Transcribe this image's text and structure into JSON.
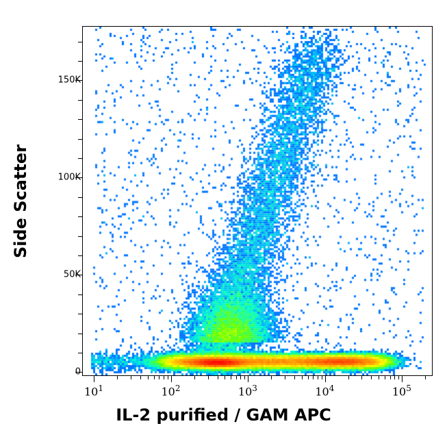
{
  "chart_data": {
    "type": "scatter",
    "subtype": "flow-cytometry density dot plot",
    "title": "",
    "xlabel": "IL-2 purified / GAM APC",
    "ylabel": "Side Scatter",
    "xscale": "log",
    "xlim": [
      7,
      250000
    ],
    "ylim": [
      -2000,
      178000
    ],
    "x_ticks": [
      {
        "value": 10,
        "label": "10^1"
      },
      {
        "value": 100,
        "label": "10^2"
      },
      {
        "value": 1000,
        "label": "10^3"
      },
      {
        "value": 10000,
        "label": "10^4"
      },
      {
        "value": 100000,
        "label": "10^5"
      }
    ],
    "y_ticks": [
      {
        "value": 0,
        "label": "0"
      },
      {
        "value": 50000,
        "label": "50K"
      },
      {
        "value": 100000,
        "label": "100K"
      },
      {
        "value": 150000,
        "label": "150K"
      }
    ],
    "colormap": [
      "#0000ff",
      "#00aaff",
      "#00ffcc",
      "#66ff00",
      "#ffff00",
      "#ff8800",
      "#ff0000"
    ],
    "populations": [
      {
        "name": "main low-SSC band",
        "x_range": [
          100,
          60000
        ],
        "y_center": 5000,
        "peak_x": [
          300,
          20000
        ],
        "density": "highest (red)"
      },
      {
        "name": "rising granular population",
        "x_range": [
          400,
          10000
        ],
        "y_range": [
          10000,
          178000
        ],
        "density": "low-medium (blue-green)"
      },
      {
        "name": "sparse scatter",
        "x_range": [
          10,
          200000
        ],
        "y_range": [
          0,
          178000
        ],
        "density": "low (blue)"
      }
    ]
  },
  "axes": {
    "x_title": "IL-2 purified / GAM APC",
    "y_title": "Side Scatter",
    "y_labels": [
      "0",
      "50K",
      "100K",
      "150K"
    ],
    "x_labels": [
      {
        "base": "10",
        "exp": "1"
      },
      {
        "base": "10",
        "exp": "2"
      },
      {
        "base": "10",
        "exp": "3"
      },
      {
        "base": "10",
        "exp": "4"
      },
      {
        "base": "10",
        "exp": "5"
      }
    ]
  }
}
